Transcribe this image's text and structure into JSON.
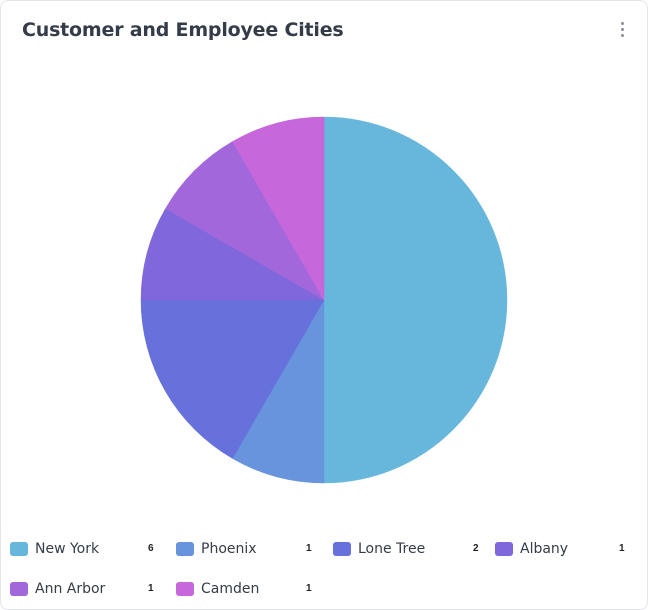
{
  "card": {
    "title": "Customer and Employee Cities",
    "menu_icon": "more-vertical-icon"
  },
  "chart_data": {
    "type": "pie",
    "title": "Customer and Employee Cities",
    "categories": [
      "New York",
      "Phoenix",
      "Lone Tree",
      "Albany",
      "Ann Arbor",
      "Camden"
    ],
    "values": [
      6,
      1,
      2,
      1,
      1,
      1
    ],
    "colors": [
      "#67b7dc",
      "#6794dc",
      "#6771dc",
      "#8067dc",
      "#a367dc",
      "#c767dc"
    ],
    "legend_position": "bottom"
  }
}
